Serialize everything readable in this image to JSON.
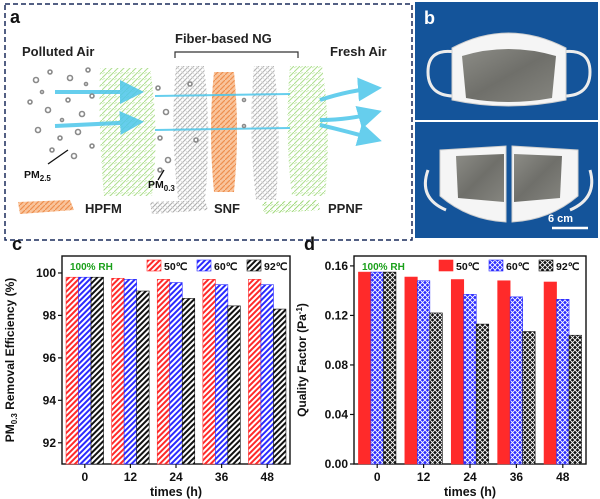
{
  "panels": {
    "a": {
      "letter": "a",
      "polluted_air": "Polluted Air",
      "fiber_ng": "Fiber-based NG",
      "fresh_air": "Fresh Air",
      "pm25_label": "PM2.5",
      "pm03_label": "PM0.3",
      "legend": [
        {
          "label": "HPFM",
          "color": "#f4a46c"
        },
        {
          "label": "SNF",
          "color": "#b8b8b8"
        },
        {
          "label": "PPNF",
          "color": "#b7e29b"
        }
      ]
    },
    "b": {
      "letter": "b",
      "scale_label": "6 cm"
    }
  },
  "chart_data": [
    {
      "panel": "c",
      "type": "bar",
      "annotation": "100% RH",
      "ylabel": "PM0.3 Removal Efficiency (%)",
      "xlabel": "times (h)",
      "categories": [
        "0",
        "12",
        "24",
        "36",
        "48"
      ],
      "ylim": [
        91,
        100.8
      ],
      "yticks": [
        92,
        94,
        96,
        98,
        100
      ],
      "series": [
        {
          "name": "50℃",
          "color": "#ff2a2a",
          "pattern": "hatch",
          "values": [
            99.8,
            99.75,
            99.7,
            99.7,
            99.7
          ]
        },
        {
          "name": "60℃",
          "color": "#2a2aff",
          "pattern": "hatch",
          "values": [
            99.8,
            99.7,
            99.55,
            99.45,
            99.45
          ]
        },
        {
          "name": "92℃",
          "color": "#111111",
          "pattern": "hatch",
          "values": [
            99.8,
            99.15,
            98.8,
            98.45,
            98.3
          ]
        }
      ]
    },
    {
      "panel": "d",
      "type": "bar",
      "annotation": "100% RH",
      "ylabel": "Quality Factor (Pa-1)",
      "xlabel": "times (h)",
      "categories": [
        "0",
        "12",
        "24",
        "36",
        "48"
      ],
      "ylim": [
        0,
        0.168
      ],
      "yticks": [
        0.0,
        0.04,
        0.08,
        0.12,
        0.16
      ],
      "series": [
        {
          "name": "50℃",
          "color": "#ff2a2a",
          "pattern": "solid",
          "values": [
            0.155,
            0.151,
            0.149,
            0.148,
            0.147
          ]
        },
        {
          "name": "60℃",
          "color": "#2a2aff",
          "pattern": "crosshatch",
          "values": [
            0.155,
            0.148,
            0.137,
            0.135,
            0.133
          ]
        },
        {
          "name": "92℃",
          "color": "#111111",
          "pattern": "crosshatch",
          "values": [
            0.155,
            0.122,
            0.113,
            0.107,
            0.104
          ]
        }
      ]
    }
  ]
}
